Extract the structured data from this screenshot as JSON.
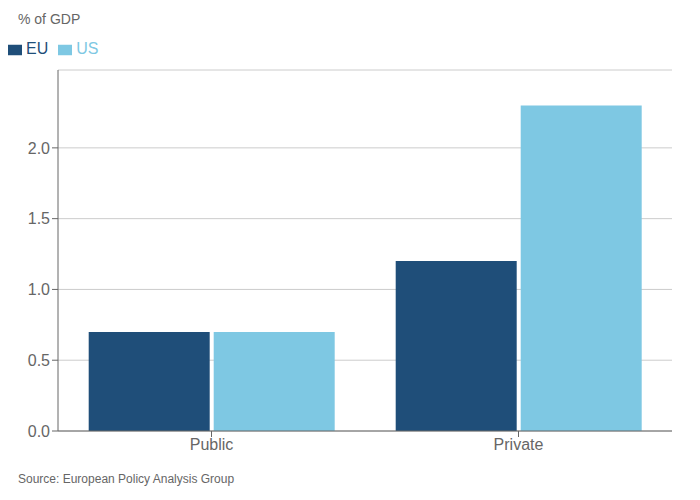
{
  "chart_data": {
    "type": "bar",
    "ylabel": "% of GDP",
    "categories": [
      "Public",
      "Private"
    ],
    "series": [
      {
        "name": "EU",
        "color": "#1f4e79",
        "values": [
          0.7,
          1.2
        ]
      },
      {
        "name": "US",
        "color": "#7ec8e3",
        "values": [
          0.7,
          2.3
        ]
      }
    ],
    "ylim": [
      0,
      2.55
    ],
    "yticks": [
      {
        "value": 0,
        "label": "0.0"
      },
      0.5,
      {
        "value": 1.0,
        "label": "1.0"
      },
      1.5,
      {
        "value": 2.0,
        "label": "2.0"
      }
    ],
    "grid": true,
    "legend": "upper left",
    "annotations": [
      "Source: European Policy Analysis Group"
    ]
  }
}
